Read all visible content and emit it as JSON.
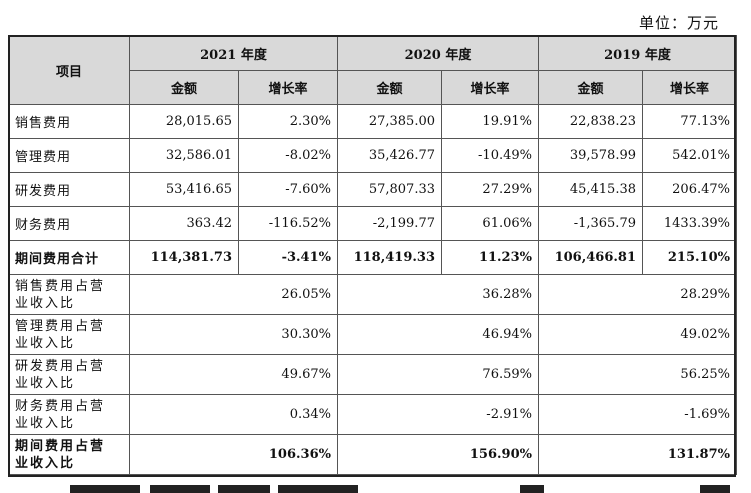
{
  "unit_label": "单位：万元",
  "header": {
    "item": "项目",
    "years": [
      "2021 年度",
      "2020 年度",
      "2019 年度"
    ],
    "amount": "金额",
    "growth": "增长率"
  },
  "rows": [
    {
      "label": "销售费用",
      "cells": [
        "28,015.65",
        "2.30%",
        "27,385.00",
        "19.91%",
        "22,838.23",
        "77.13%"
      ]
    },
    {
      "label": "管理费用",
      "cells": [
        "32,586.01",
        "-8.02%",
        "35,426.77",
        "-10.49%",
        "39,578.99",
        "542.01%"
      ]
    },
    {
      "label": "研发费用",
      "cells": [
        "53,416.65",
        "-7.60%",
        "57,807.33",
        "27.29%",
        "45,415.38",
        "206.47%"
      ]
    },
    {
      "label": "财务费用",
      "cells": [
        "363.42",
        "-116.52%",
        "-2,199.77",
        "61.06%",
        "-1,365.79",
        "1433.39%"
      ]
    },
    {
      "label": "期间费用合计",
      "cells": [
        "114,381.73",
        "-3.41%",
        "118,419.33",
        "11.23%",
        "106,466.81",
        "215.10%"
      ]
    }
  ],
  "ratio_rows": [
    {
      "label_line1": "销售费用占营",
      "label_line2": "业收入比",
      "values": [
        "26.05%",
        "36.28%",
        "28.29%"
      ]
    },
    {
      "label_line1": "管理费用占营",
      "label_line2": "业收入比",
      "values": [
        "30.30%",
        "46.94%",
        "49.02%"
      ]
    },
    {
      "label_line1": "研发费用占营",
      "label_line2": "业收入比",
      "values": [
        "49.67%",
        "76.59%",
        "56.25%"
      ]
    },
    {
      "label_line1": "财务费用占营",
      "label_line2": "业收入比",
      "values": [
        "0.34%",
        "-2.91%",
        "-1.69%"
      ]
    },
    {
      "label_line1": "期间费用占营",
      "label_line2": "业收入比",
      "values": [
        "106.36%",
        "156.90%",
        "131.87%"
      ]
    }
  ]
}
